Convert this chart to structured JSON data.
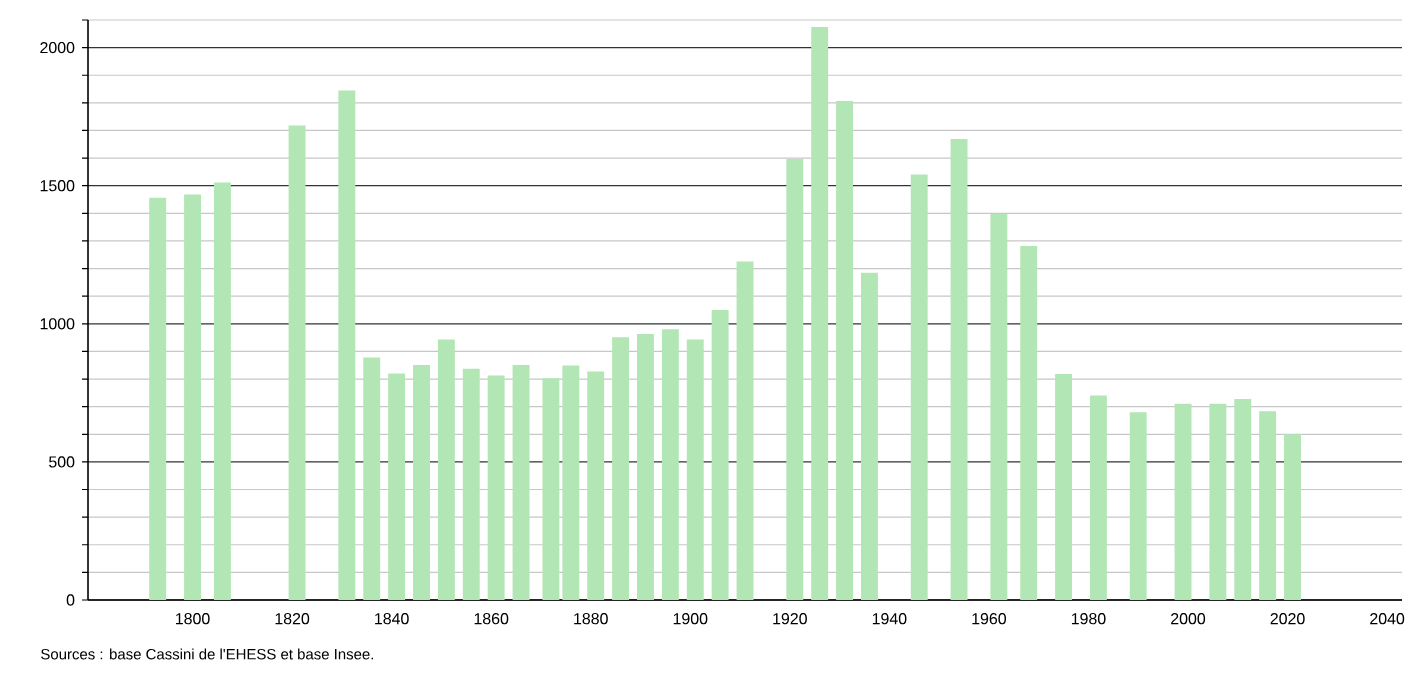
{
  "chart_data": {
    "type": "bar",
    "color": "#b3e6b5",
    "x": [
      1793,
      1800,
      1806,
      1821,
      1831,
      1836,
      1841,
      1846,
      1851,
      1856,
      1861,
      1866,
      1872,
      1876,
      1881,
      1886,
      1891,
      1896,
      1901,
      1906,
      1911,
      1921,
      1926,
      1931,
      1936,
      1946,
      1954,
      1962,
      1968,
      1975,
      1982,
      1990,
      1999,
      2006,
      2011,
      2016,
      2021
    ],
    "values": [
      1456,
      1468,
      1512,
      1718,
      1845,
      878,
      820,
      851,
      943,
      837,
      813,
      851,
      803,
      849,
      827,
      951,
      963,
      980,
      943,
      1050,
      1226,
      1597,
      2075,
      1807,
      1185,
      1541,
      1669,
      1398,
      1282,
      818,
      740,
      680,
      711,
      711,
      728,
      683,
      600
    ],
    "xlim": [
      1779,
      2043
    ],
    "ylim": [
      0,
      2100
    ],
    "xticks": [
      1800,
      1820,
      1840,
      1860,
      1880,
      1900,
      1920,
      1940,
      1960,
      1980,
      2000,
      2020,
      2040
    ],
    "yticks": [
      0,
      {
        "value": 100,
        "label": null
      },
      {
        "value": 200,
        "label": null
      },
      {
        "value": 300,
        "label": null
      },
      {
        "value": 400,
        "label": null
      },
      500,
      {
        "value": 600,
        "label": null
      },
      {
        "value": 700,
        "label": null
      },
      {
        "value": 800,
        "label": null
      },
      {
        "value": 900,
        "label": null
      },
      1000,
      {
        "value": 1100,
        "label": null
      },
      {
        "value": 1200,
        "label": null
      },
      {
        "value": 1300,
        "label": null
      },
      {
        "value": 1400,
        "label": null
      },
      1500,
      {
        "value": 1600,
        "label": null
      },
      {
        "value": 1700,
        "label": null
      },
      {
        "value": 1800,
        "label": null
      },
      {
        "value": 1900,
        "label": null
      },
      2000,
      {
        "value": 2100,
        "label": null
      }
    ],
    "grid": "y",
    "annotations": [
      "Sources : base Cassini de l'EHESS et base Insee."
    ]
  }
}
